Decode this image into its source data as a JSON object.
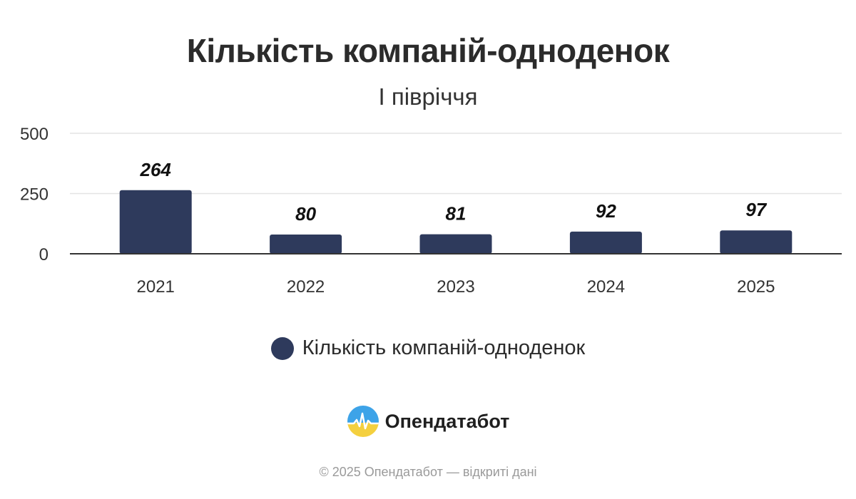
{
  "colors": {
    "bar": "#2e3a5c",
    "grid": "#e4e4e4",
    "axis": "#333333",
    "logo_top": "#3da3e8",
    "logo_bottom": "#f4d03f"
  },
  "chart_data": {
    "type": "bar",
    "title": "Кількість компаній-одноденок",
    "subtitle": "І півріччя",
    "categories": [
      "2021",
      "2022",
      "2023",
      "2024",
      "2025"
    ],
    "series": [
      {
        "name": "Кількість компаній-одноденок",
        "values": [
          264,
          80,
          81,
          92,
          97
        ]
      }
    ],
    "data_labels": [
      "264",
      "80",
      "81",
      "92",
      "97"
    ],
    "yticks": [
      "0",
      "250",
      "500"
    ],
    "ylim": [
      0,
      500
    ],
    "grid": true,
    "legend": "bottom-center"
  },
  "brand": {
    "name": "Опендатабот",
    "logo_icon": "opendatabot-logo-icon"
  },
  "footer": {
    "text": "© 2025 Опендатабот — відкриті дані"
  }
}
